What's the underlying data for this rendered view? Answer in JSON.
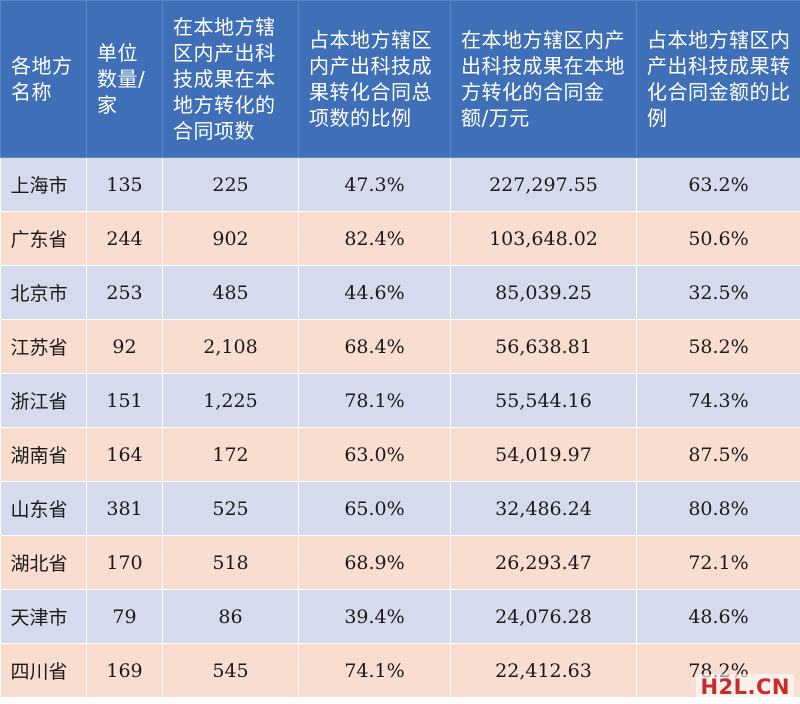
{
  "table": {
    "headers": [
      "各地方名称",
      "单位数量/家",
      "在本地方辖区内产出科技成果在本地方转化的合同项数",
      "占本地方辖区内产出科技成果转化合同总项数的比例",
      "在本地方辖区内产出科技成果在本地方转化的合同金额/万元",
      "占本地方辖区内产出科技成果转化合同金额的比例"
    ],
    "rows": [
      [
        "上海市",
        "135",
        "225",
        "47.3%",
        "227,297.55",
        "63.2%"
      ],
      [
        "广东省",
        "244",
        "902",
        "82.4%",
        "103,648.02",
        "50.6%"
      ],
      [
        "北京市",
        "253",
        "485",
        "44.6%",
        "85,039.25",
        "32.5%"
      ],
      [
        "江苏省",
        "92",
        "2,108",
        "68.4%",
        "56,638.81",
        "58.2%"
      ],
      [
        "浙江省",
        "151",
        "1,225",
        "78.1%",
        "55,544.16",
        "74.3%"
      ],
      [
        "湖南省",
        "164",
        "172",
        "63.0%",
        "54,019.97",
        "87.5%"
      ],
      [
        "山东省",
        "381",
        "525",
        "65.0%",
        "32,486.24",
        "80.8%"
      ],
      [
        "湖北省",
        "170",
        "518",
        "68.9%",
        "26,293.47",
        "72.1%"
      ],
      [
        "天津市",
        "79",
        "86",
        "39.4%",
        "24,076.28",
        "48.6%"
      ],
      [
        "四川省",
        "169",
        "545",
        "74.1%",
        "22,412.63",
        "78.2%"
      ]
    ]
  },
  "watermark": "H2L.CN",
  "colors": {
    "header_bg": "#3f6fb6",
    "row_odd": "#d5dbec",
    "row_even": "#f8ddd0",
    "watermark": "#c62c2c"
  }
}
